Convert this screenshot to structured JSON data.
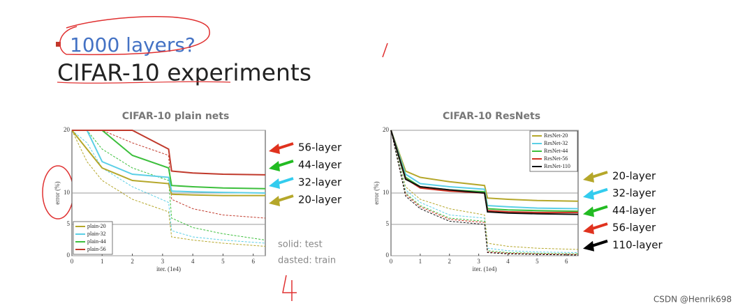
{
  "slide": {
    "subtitle": "1000 layers?",
    "title": "CIFAR-10 experiments",
    "watermark": "CSDN @Henrik698"
  },
  "chart_data": [
    {
      "type": "line",
      "title": "CIFAR-10 plain nets",
      "x_label": "iter. (1e4)",
      "y_label": "error (%)",
      "x": [
        0,
        0.5,
        1,
        2,
        3.2,
        3.3,
        4,
        5,
        6.4
      ],
      "xlim": [
        0,
        6.4
      ],
      "ylim": [
        0,
        20
      ],
      "xticks": [
        0,
        1,
        2,
        3,
        4,
        5,
        6
      ],
      "yticks": [
        0,
        5,
        10,
        20
      ],
      "grid": true,
      "legend": "lower left",
      "series": [
        {
          "name": "plain-20",
          "color": "#b5a72a",
          "values": [
            20,
            17,
            14,
            12,
            11.5,
            9.8,
            9.7,
            9.6,
            9.6
          ],
          "train": [
            20,
            15,
            12,
            9,
            7,
            3,
            2.5,
            2,
            1.5
          ]
        },
        {
          "name": "plain-32",
          "color": "#5bcfe6",
          "values": [
            20,
            20,
            15,
            13,
            12.5,
            10.3,
            10.2,
            10.1,
            10
          ],
          "train": [
            20,
            18,
            14,
            11,
            8.5,
            4,
            3,
            2.5,
            2
          ]
        },
        {
          "name": "plain-44",
          "color": "#3cbf3c",
          "values": [
            20,
            20,
            20,
            16,
            14,
            11.2,
            11,
            10.8,
            10.7
          ],
          "train": [
            20,
            20,
            17,
            14,
            12,
            6,
            4.5,
            3.5,
            2.5
          ]
        },
        {
          "name": "plain-56",
          "color": "#c0392b",
          "values": [
            20,
            20,
            20,
            20,
            17,
            13.5,
            13.2,
            13,
            12.9
          ],
          "train": [
            20,
            20,
            20,
            18,
            16,
            9,
            7.5,
            6.5,
            6
          ]
        }
      ],
      "annotations": [
        {
          "text": "56-layer",
          "color": "#e0321e"
        },
        {
          "text": "44-layer",
          "color": "#22bb22"
        },
        {
          "text": "32-layer",
          "color": "#33ccee"
        },
        {
          "text": "20-layer",
          "color": "#b5a72a"
        }
      ],
      "notes": [
        "solid: test",
        "dasted: train"
      ]
    },
    {
      "type": "line",
      "title": "CIFAR-10 ResNets",
      "x_label": "iter. (1e4)",
      "y_label": "error (%)",
      "x": [
        0,
        0.5,
        1,
        2,
        3.2,
        3.3,
        4,
        5,
        6.4
      ],
      "xlim": [
        0,
        6.4
      ],
      "ylim": [
        0,
        20
      ],
      "xticks": [
        0,
        1,
        2,
        3,
        4,
        5,
        6
      ],
      "yticks": [
        0,
        5,
        10,
        20
      ],
      "grid": true,
      "legend": "upper right",
      "series": [
        {
          "name": "ResNet-20",
          "color": "#b5a72a",
          "values": [
            20,
            13.5,
            12.5,
            11.8,
            11.2,
            9.2,
            9,
            8.8,
            8.7
          ],
          "train": [
            20,
            11,
            9,
            7.5,
            6.5,
            2,
            1.5,
            1.2,
            1
          ]
        },
        {
          "name": "ResNet-32",
          "color": "#5bcfe6",
          "values": [
            20,
            13,
            11.5,
            11,
            10.6,
            8,
            7.8,
            7.6,
            7.5
          ],
          "train": [
            20,
            10.5,
            8.5,
            6.5,
            6,
            1.2,
            0.8,
            0.6,
            0.5
          ]
        },
        {
          "name": "ResNet-44",
          "color": "#3cbf3c",
          "values": [
            20,
            12.5,
            11,
            10.5,
            10.2,
            7.5,
            7.3,
            7.2,
            7.1
          ],
          "train": [
            20,
            10,
            8,
            6,
            5.5,
            0.8,
            0.5,
            0.4,
            0.3
          ]
        },
        {
          "name": "ResNet-56",
          "color": "#d03020",
          "values": [
            20,
            12.3,
            10.8,
            10.3,
            10,
            7.2,
            7,
            6.9,
            6.9
          ],
          "train": [
            20,
            9.8,
            7.8,
            5.8,
            5.3,
            0.6,
            0.4,
            0.3,
            0.2
          ]
        },
        {
          "name": "ResNet-110",
          "color": "#111111",
          "values": [
            20,
            12.2,
            11,
            10.5,
            10,
            7,
            6.8,
            6.7,
            6.6
          ],
          "train": [
            20,
            9.5,
            7.5,
            5.5,
            5,
            0.5,
            0.3,
            0.2,
            0.1
          ]
        }
      ],
      "annotations": [
        {
          "text": "20-layer",
          "color": "#b5a72a"
        },
        {
          "text": "32-layer",
          "color": "#33ccee"
        },
        {
          "text": "44-layer",
          "color": "#22bb22"
        },
        {
          "text": "56-layer",
          "color": "#e0321e"
        },
        {
          "text": "110-layer",
          "color": "#000000"
        }
      ],
      "notes": []
    }
  ]
}
